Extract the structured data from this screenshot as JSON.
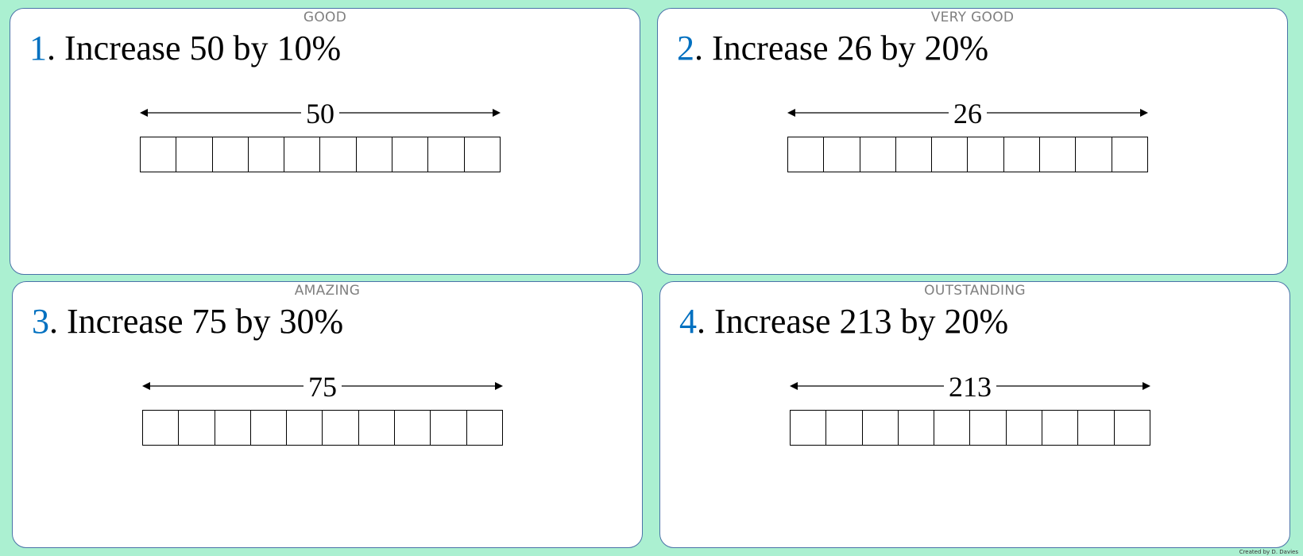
{
  "cards": [
    {
      "level": "GOOD",
      "number": "1",
      "text": ". Increase 50 by 10%",
      "total": "50",
      "cells": 10
    },
    {
      "level": "VERY GOOD",
      "number": "2",
      "text": ". Increase 26 by 20%",
      "total": "26",
      "cells": 10
    },
    {
      "level": "AMAZING",
      "number": "3",
      "text": ". Increase 75 by 30%",
      "total": "75",
      "cells": 10
    },
    {
      "level": "OUTSTANDING",
      "number": "4",
      "text": ". Increase 213 by 20%",
      "total": "213",
      "cells": 10
    }
  ],
  "credit": "Created by D. Davies",
  "colors": {
    "background": "#abf0d1",
    "number": "#0070c0",
    "border": "#4a72a8"
  }
}
